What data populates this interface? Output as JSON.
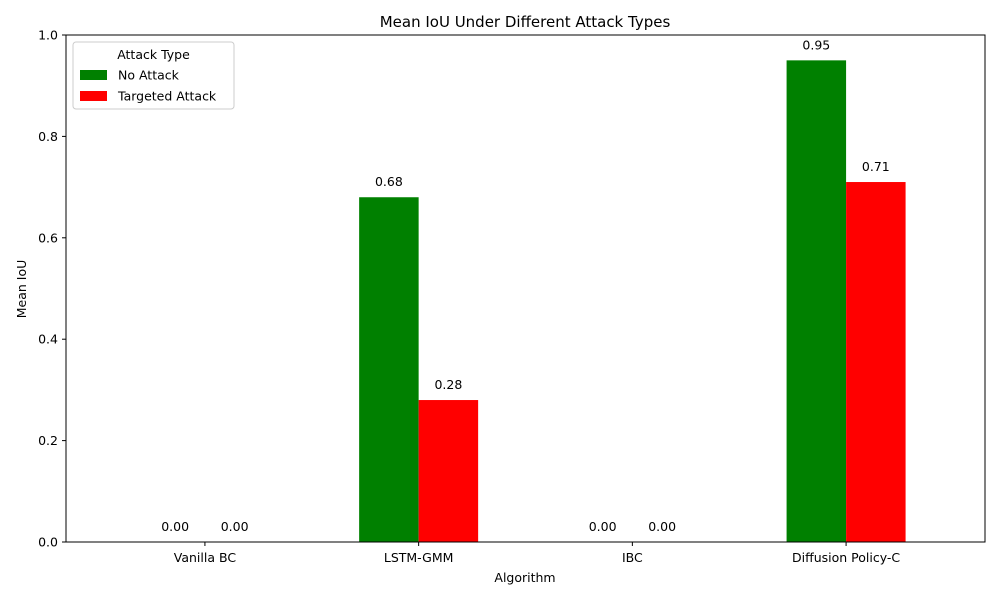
{
  "chart_data": {
    "type": "bar",
    "title": "Mean IoU Under Different Attack Types",
    "xlabel": "Algorithm",
    "ylabel": "Mean IoU",
    "ylim": [
      0,
      1.0
    ],
    "yticks": [
      "0.0",
      "0.2",
      "0.4",
      "0.6",
      "0.8",
      "1.0"
    ],
    "categories": [
      "Vanilla BC",
      "LSTM-GMM",
      "IBC",
      "Diffusion Policy-C"
    ],
    "legend": {
      "title": "Attack Type",
      "placement": "top-left"
    },
    "series": [
      {
        "name": "No Attack",
        "color": "#008000",
        "values": [
          0.0,
          0.68,
          0.0,
          0.95
        ],
        "labels": [
          "0.00",
          "0.68",
          "0.00",
          "0.95"
        ]
      },
      {
        "name": "Targeted Attack",
        "color": "#ff0000",
        "values": [
          0.0,
          0.28,
          0.0,
          0.71
        ],
        "labels": [
          "0.00",
          "0.28",
          "0.00",
          "0.71"
        ]
      }
    ],
    "grid": false
  }
}
